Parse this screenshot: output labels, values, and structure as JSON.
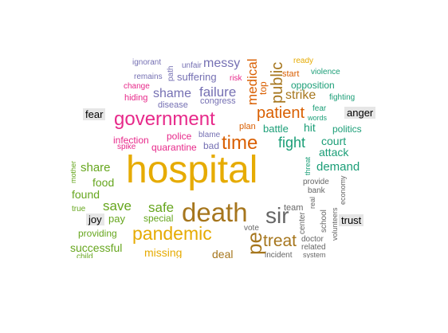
{
  "title": "",
  "category_labels": [
    "fear",
    "anger",
    "joy",
    "trust"
  ],
  "colors": {
    "fear": "#7570b3",
    "anger": "#e7298a",
    "joy_green": "#66a61e",
    "joy_gold": "#e6ab02",
    "trust_brown": "#a6761d",
    "trust_grey": "#666666",
    "teal": "#1b9e77",
    "orange": "#d95f02"
  },
  "words": [
    "ignorant",
    "unfair",
    "messy",
    "ready",
    "remains",
    "path",
    "suffering",
    "risk",
    "start",
    "violence",
    "change",
    "opposition",
    "hiding",
    "shame",
    "failure",
    "medical",
    "top",
    "public",
    "strike",
    "fighting",
    "disease",
    "congress",
    "words",
    "fear",
    "patient",
    "government",
    "politics",
    "time",
    "plan",
    "battle",
    "hit",
    "infection",
    "police",
    "blame",
    "fight",
    "court",
    "spike",
    "quarantine",
    "bad",
    "attack",
    "mother",
    "threat",
    "demand",
    "hospital",
    "share",
    "food",
    "provide",
    "found",
    "bank",
    "economy",
    "save",
    "safe",
    "death",
    "sir",
    "team",
    "true",
    "pay",
    "special",
    "real",
    "school",
    "volunteers",
    "providing",
    "pandemic",
    "vote",
    "center",
    "successful",
    "treat",
    "doctor",
    "related",
    "missing",
    "deal",
    "pe",
    "incident",
    "system",
    "child"
  ]
}
